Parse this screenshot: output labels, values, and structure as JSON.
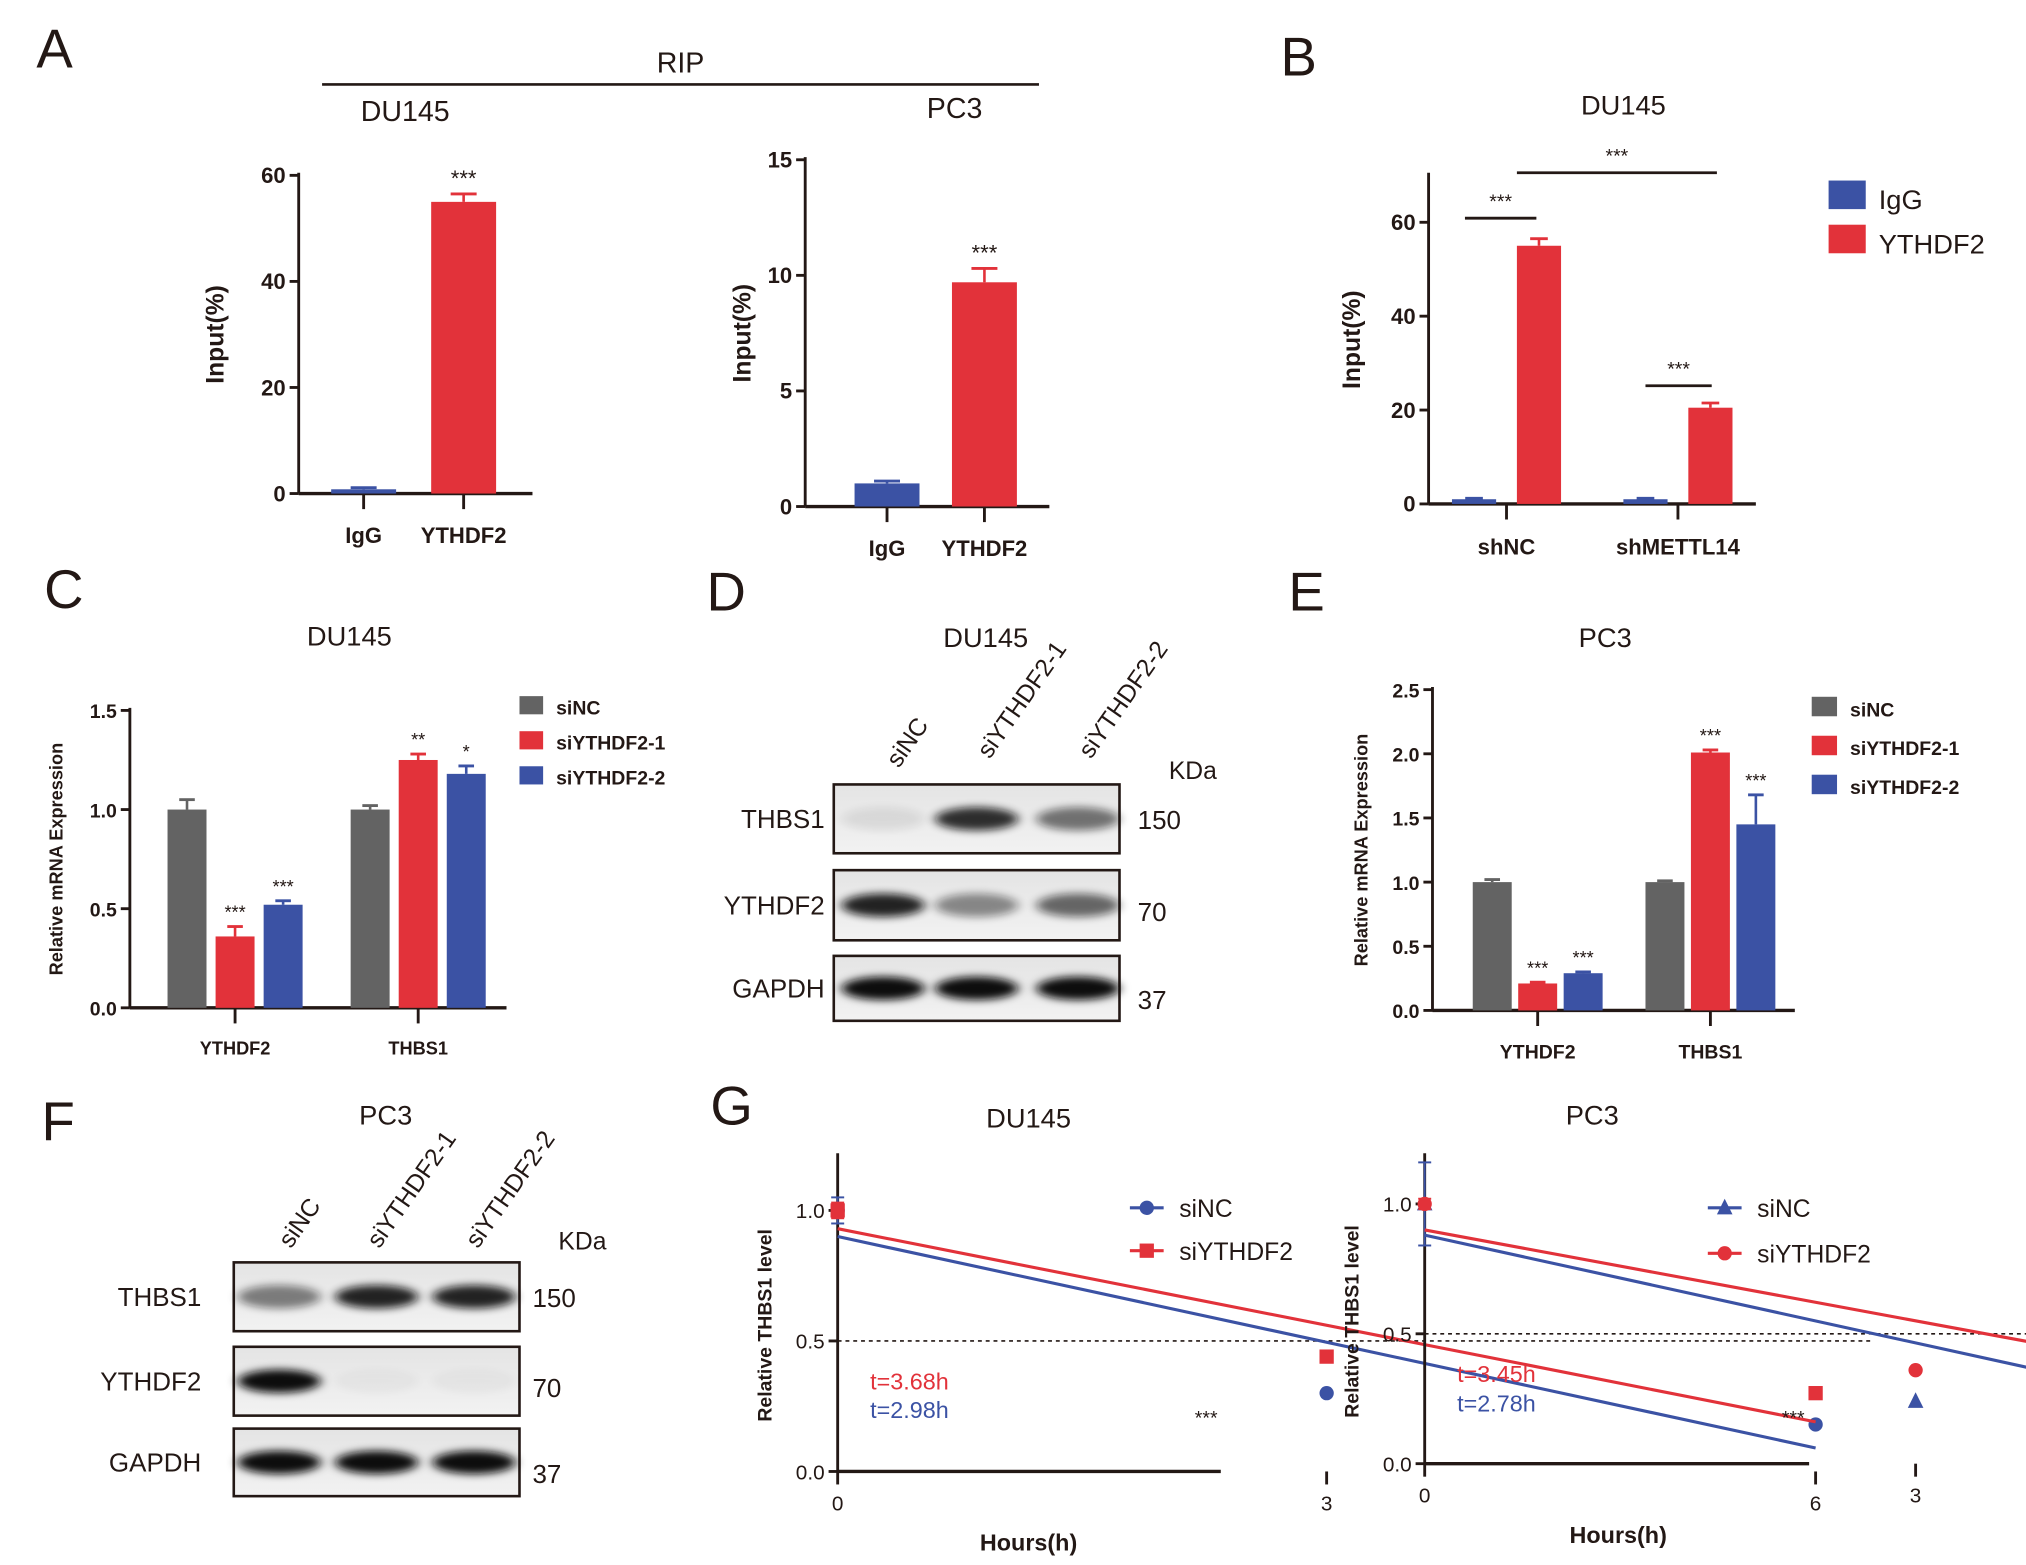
{
  "panel_labels": {
    "A": "A",
    "B": "B",
    "C": "C",
    "D": "D",
    "E": "E",
    "F": "F",
    "G": "G"
  },
  "rip": {
    "label": "RIP",
    "left_cell": "DU145",
    "right_cell": "PC3"
  },
  "colors": {
    "igg_blue": "#3b52a4",
    "red": "#e2323a",
    "gray": "#636363",
    "sinc_blue": "#3b52a4"
  },
  "chart_data": [
    {
      "id": "A-DU145",
      "type": "bar",
      "title": "",
      "ylabel": "Input(%)",
      "ylim": [
        0,
        60
      ],
      "yticks": [
        "0",
        "20",
        "40",
        "60"
      ],
      "ytick_values": [
        0,
        20,
        40,
        60
      ],
      "categories": [
        "IgG",
        "YTHDF2"
      ],
      "series": [
        {
          "colors": [
            "#3b52a4",
            "#e2323a"
          ],
          "values": [
            0.8,
            55
          ],
          "errors": [
            0.3,
            1.5
          ],
          "stars": [
            "",
            "***"
          ]
        }
      ]
    },
    {
      "id": "A-PC3",
      "type": "bar",
      "title": "",
      "ylabel": "Input(%)",
      "ylim": [
        0,
        15
      ],
      "yticks": [
        "0",
        "5",
        "10",
        "15"
      ],
      "ytick_values": [
        0,
        5,
        10,
        15
      ],
      "categories": [
        "IgG",
        "YTHDF2"
      ],
      "series": [
        {
          "colors": [
            "#3b52a4",
            "#e2323a"
          ],
          "values": [
            1.0,
            9.7
          ],
          "errors": [
            0.1,
            0.6
          ],
          "stars": [
            "",
            "***"
          ]
        }
      ]
    },
    {
      "id": "B",
      "type": "bar",
      "title": "DU145",
      "ylabel": "Input(%)",
      "ylim": [
        0,
        70
      ],
      "yticks": [
        "0",
        "20",
        "40",
        "60"
      ],
      "ytick_values": [
        0,
        20,
        40,
        60
      ],
      "categories": [
        "shNC",
        "shMETTL14"
      ],
      "series": [
        {
          "name": "IgG",
          "color": "#3b52a4",
          "values": [
            1.0,
            1.0
          ],
          "errors": [
            0.2,
            0.2
          ],
          "stars": [
            "",
            ""
          ]
        },
        {
          "name": "YTHDF2",
          "color": "#e2323a",
          "values": [
            55,
            20.5
          ],
          "errors": [
            1.5,
            1.0
          ],
          "stars": [
            "",
            ""
          ]
        }
      ],
      "brackets": [
        "***",
        "***",
        "***"
      ],
      "legend": "right"
    },
    {
      "id": "C",
      "type": "bar",
      "title": "DU145",
      "ylabel": "Relative mRNA Expression",
      "ylim": [
        0,
        1.5
      ],
      "yticks": [
        "0.0",
        "0.5",
        "1.0",
        "1.5"
      ],
      "ytick_values": [
        0,
        0.5,
        1,
        1.5
      ],
      "categories": [
        "YTHDF2",
        "THBS1"
      ],
      "series": [
        {
          "name": "siNC",
          "color": "#636363",
          "values": [
            1.0,
            1.0
          ],
          "errors": [
            0.05,
            0.02
          ],
          "stars": [
            "",
            ""
          ]
        },
        {
          "name": "siYTHDF2-1",
          "color": "#e2323a",
          "values": [
            0.36,
            1.25
          ],
          "errors": [
            0.05,
            0.03
          ],
          "stars": [
            "***",
            "**"
          ]
        },
        {
          "name": "siYTHDF2-2",
          "color": "#3b52a4",
          "values": [
            0.52,
            1.18
          ],
          "errors": [
            0.02,
            0.04
          ],
          "stars": [
            "***",
            "*"
          ]
        }
      ],
      "legend": "right"
    },
    {
      "id": "E",
      "type": "bar",
      "title": "PC3",
      "ylabel": "Relative mRNA Expression",
      "ylim": [
        0,
        2.5
      ],
      "yticks": [
        "0.0",
        "0.5",
        "1.0",
        "1.5",
        "2.0",
        "2.5"
      ],
      "ytick_values": [
        0,
        0.5,
        1,
        1.5,
        2,
        2.5
      ],
      "categories": [
        "YTHDF2",
        "THBS1"
      ],
      "series": [
        {
          "name": "siNC",
          "color": "#636363",
          "values": [
            1.0,
            1.0
          ],
          "errors": [
            0.02,
            0.01
          ],
          "stars": [
            "",
            ""
          ]
        },
        {
          "name": "siYTHDF2-1",
          "color": "#e2323a",
          "values": [
            0.21,
            2.01
          ],
          "errors": [
            0.01,
            0.02
          ],
          "stars": [
            "***",
            "***"
          ]
        },
        {
          "name": "siYTHDF2-2",
          "color": "#3b52a4",
          "values": [
            0.29,
            1.45
          ],
          "errors": [
            0.01,
            0.23
          ],
          "stars": [
            "***",
            "***"
          ]
        }
      ],
      "legend": "right"
    },
    {
      "id": "G-DU145",
      "type": "line",
      "title": "DU145",
      "xlabel": "Hours(h)",
      "ylabel": "Relative THBS1 level",
      "ylim": [
        0,
        1.2
      ],
      "xlim": [
        0,
        7
      ],
      "xticks": [
        "0",
        "3",
        "6"
      ],
      "xtick_values": [
        0,
        3,
        6
      ],
      "yticks": [
        "0.0",
        "0.5",
        "1.0"
      ],
      "ytick_values": [
        0,
        0.5,
        1
      ],
      "reference_y": 0.5,
      "annotation": "***",
      "series": [
        {
          "name": "siNC",
          "color": "#3b52a4",
          "marker": "circle",
          "x": [
            0,
            3,
            6
          ],
          "y": [
            1.0,
            0.3,
            0.18
          ],
          "errors": [
            0.05,
            0,
            0
          ],
          "fit": [
            0.9,
            0.09
          ],
          "half_life": "t=2.98h"
        },
        {
          "name": "siYTHDF2",
          "color": "#e2323a",
          "marker": "square",
          "x": [
            0,
            3,
            6
          ],
          "y": [
            1.0,
            0.44,
            0.3
          ],
          "errors": [
            0.03,
            0,
            0
          ],
          "fit": [
            0.93,
            0.19
          ],
          "half_life": "t=3.68h"
        }
      ],
      "legend": "top-right"
    },
    {
      "id": "G-PC3",
      "type": "line",
      "title": "PC3",
      "xlabel": "Hours(h)",
      "ylabel": "Relative THBS1 level",
      "ylim": [
        0,
        1.2
      ],
      "xlim": [
        0,
        7
      ],
      "xticks": [
        "0",
        "3",
        "6"
      ],
      "xtick_values": [
        0,
        3,
        6
      ],
      "yticks": [
        "0.0",
        "0.5",
        "1.0"
      ],
      "ytick_values": [
        0,
        0.5,
        1
      ],
      "reference_y": 0.5,
      "annotation": "***",
      "series": [
        {
          "name": "siNC",
          "color": "#3b52a4",
          "marker": "triangle",
          "x": [
            0,
            3,
            6
          ],
          "y": [
            1.0,
            0.24,
            0.17
          ],
          "errors": [
            0.16,
            0,
            0
          ],
          "fit": [
            0.88,
            0.05
          ],
          "half_life": "t=2.78h"
        },
        {
          "name": "siYTHDF2",
          "color": "#e2323a",
          "marker": "circle",
          "x": [
            0,
            3,
            6
          ],
          "y": [
            1.0,
            0.36,
            0.3
          ],
          "errors": [
            0.02,
            0,
            0
          ],
          "fit": [
            0.9,
            0.2
          ],
          "half_life": "t=3.45h"
        }
      ],
      "legend": "top-right"
    }
  ],
  "blots": [
    {
      "id": "D",
      "title": "DU145",
      "lanes": [
        "siNC",
        "siYTHDF2-1",
        "siYTHDF2-2"
      ],
      "kda_label": "KDa",
      "rows": [
        {
          "protein": "THBS1",
          "kda": "150",
          "band_intensity": [
            0.08,
            0.85,
            0.55
          ]
        },
        {
          "protein": "YTHDF2",
          "kda": "70",
          "band_intensity": [
            0.9,
            0.45,
            0.6
          ]
        },
        {
          "protein": "GAPDH",
          "kda": "37",
          "band_intensity": [
            1,
            1,
            1
          ]
        }
      ]
    },
    {
      "id": "F",
      "title": "PC3",
      "lanes": [
        "siNC",
        "siYTHDF2-1",
        "siYTHDF2-2"
      ],
      "kda_label": "KDa",
      "rows": [
        {
          "protein": "THBS1",
          "kda": "150",
          "band_intensity": [
            0.5,
            0.9,
            0.9
          ]
        },
        {
          "protein": "YTHDF2",
          "kda": "70",
          "band_intensity": [
            1,
            0.03,
            0.03
          ]
        },
        {
          "protein": "GAPDH",
          "kda": "37",
          "band_intensity": [
            1,
            1,
            1
          ]
        }
      ]
    }
  ]
}
